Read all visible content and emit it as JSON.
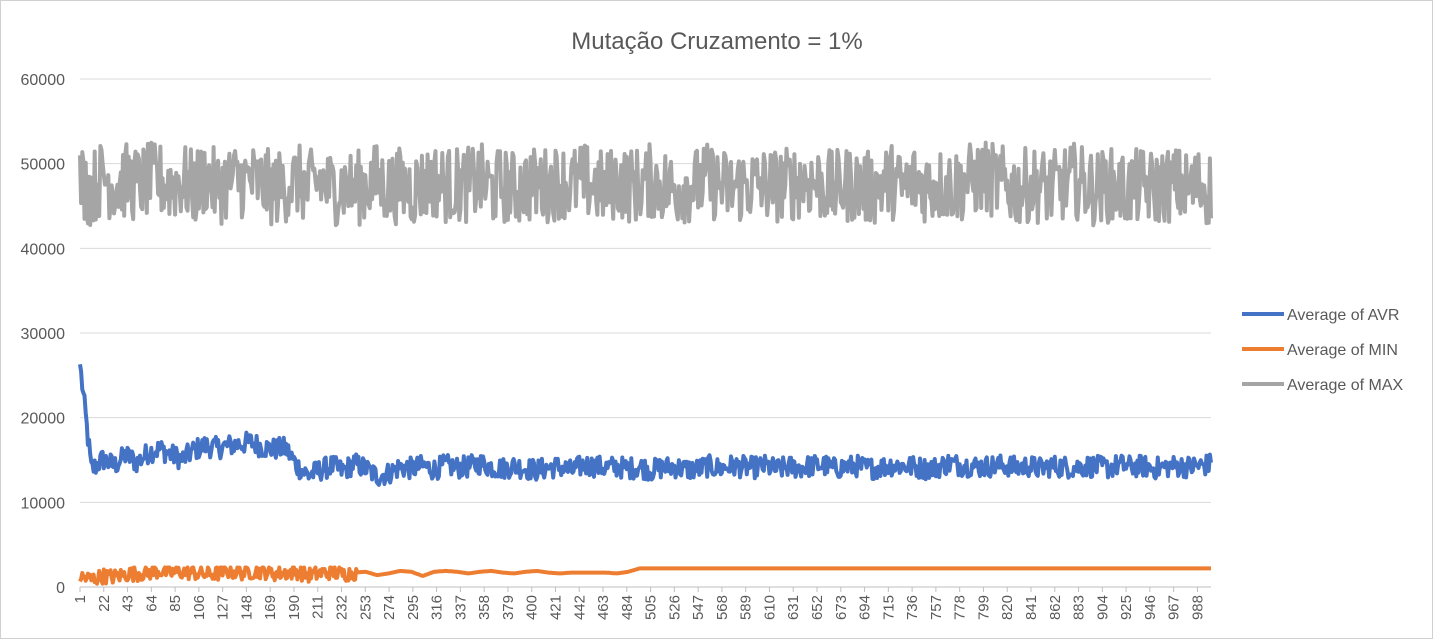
{
  "chart_data": {
    "type": "line",
    "title": "Mutação Cruzamento = 1%",
    "xlabel": "",
    "ylabel": "",
    "ylim": [
      0,
      60000
    ],
    "yticks": [
      0,
      10000,
      20000,
      30000,
      40000,
      50000,
      60000
    ],
    "xlim": [
      1,
      1000
    ],
    "x_tick_labels": [
      "1",
      "22",
      "43",
      "64",
      "85",
      "106",
      "127",
      "148",
      "169",
      "190",
      "211",
      "232",
      "253",
      "274",
      "295",
      "316",
      "337",
      "358",
      "379",
      "400",
      "421",
      "442",
      "463",
      "484",
      "505",
      "526",
      "547",
      "568",
      "589",
      "610",
      "631",
      "652",
      "673",
      "694",
      "715",
      "736",
      "757",
      "778",
      "799",
      "820",
      "841",
      "862",
      "883",
      "904",
      "925",
      "946",
      "967",
      "988"
    ],
    "grid": "horizontal",
    "legend_position": "right",
    "series": [
      {
        "name": "Average of AVR",
        "color": "#4472C4",
        "values": [
          26300,
          13800,
          15100,
          14300,
          15600,
          14700,
          15900,
          16300,
          15600,
          15100,
          16200,
          16700,
          16400,
          16700,
          16900,
          17100,
          16500,
          16300,
          16400,
          14300,
          13200,
          13800,
          14300,
          13700,
          14600,
          14000,
          13100,
          13400,
          14200,
          14000,
          14300,
          13900,
          14400,
          14100,
          14200,
          14600,
          14200,
          14000,
          14300,
          14000,
          13800,
          14100,
          14200,
          13700,
          14400,
          14300,
          14100,
          14200,
          14000,
          14200,
          13800,
          14100,
          14200,
          13900,
          13900,
          14300,
          14000,
          14300,
          14200,
          14100,
          14300,
          13900,
          14200,
          14100,
          14300,
          14400,
          14000,
          14200,
          14300,
          14000,
          14100,
          14400,
          14300,
          14200,
          14000,
          14100,
          14600,
          14400,
          14300,
          14200,
          14300,
          14400,
          14100,
          14300,
          14000,
          14300,
          14200,
          14100,
          14300,
          14200,
          14100,
          14400,
          14200,
          14300,
          14000,
          14200,
          14300,
          14200,
          14300,
          14500
        ],
        "noise": 1300
      },
      {
        "name": "Average of MIN",
        "color": "#ED7D31",
        "values": [
          1200,
          900,
          1300,
          1200,
          1500,
          1600,
          1700,
          1900,
          1700,
          1800,
          1700,
          1500,
          1600,
          1900,
          1700,
          1800,
          1900,
          1600,
          1700,
          1800,
          1400,
          1600,
          1800,
          1500,
          1700,
          1800,
          1400,
          1600,
          1900,
          1800,
          1300,
          1800,
          1900,
          1800,
          1600,
          1800,
          1900,
          1700,
          1600,
          1800,
          1900,
          1700,
          1600,
          1700,
          1700,
          1700,
          1700,
          1600,
          1800,
          2200,
          2200,
          2200,
          2200,
          2200,
          2200,
          2200,
          2200,
          2200,
          2200,
          2200,
          2200,
          2200,
          2200,
          2200,
          2200,
          2200,
          2200,
          2200,
          2200,
          2200,
          2200,
          2200,
          2200,
          2200,
          2200,
          2200,
          2200,
          2200,
          2200,
          2200,
          2200,
          2200,
          2200,
          2200,
          2200,
          2200,
          2200,
          2200,
          2200,
          2200,
          2200,
          2200,
          2200,
          2200,
          2200,
          2200,
          2200,
          2200,
          2200,
          2200
        ],
        "noise": 900
      },
      {
        "name": "Average of MAX",
        "color": "#A5A5A5",
        "values": [
          48000,
          47000,
          48500,
          47500,
          48000,
          47500,
          48000,
          48000,
          47500,
          48000,
          47000,
          48500,
          47000,
          48000,
          48000,
          48000,
          47500,
          47000,
          47500,
          48000,
          47000,
          48000,
          47000,
          47500,
          47000,
          47500,
          48000,
          47000,
          47500,
          47000,
          47500,
          48000,
          47500,
          47500,
          47500,
          48000,
          47000,
          47500,
          47000,
          47500,
          47500,
          47500,
          48000,
          47500,
          48000,
          47500,
          47000,
          48000,
          47500,
          47500,
          48000,
          47500,
          47000,
          47500,
          47500,
          48000,
          47500,
          47000,
          47500,
          47500,
          47500,
          47500,
          47500,
          48000,
          48000,
          47500,
          47000,
          47500,
          47500,
          47000,
          47500,
          48000,
          47000,
          48000,
          47500,
          47500,
          47500,
          47500,
          48000,
          48500,
          48000,
          47500,
          47000,
          47500,
          47500,
          47000,
          47500,
          48000,
          47500,
          47000,
          47500,
          47000,
          47000,
          47500,
          47000,
          47500,
          47500,
          47000,
          47500,
          47000
        ],
        "noise": 4500
      }
    ]
  }
}
